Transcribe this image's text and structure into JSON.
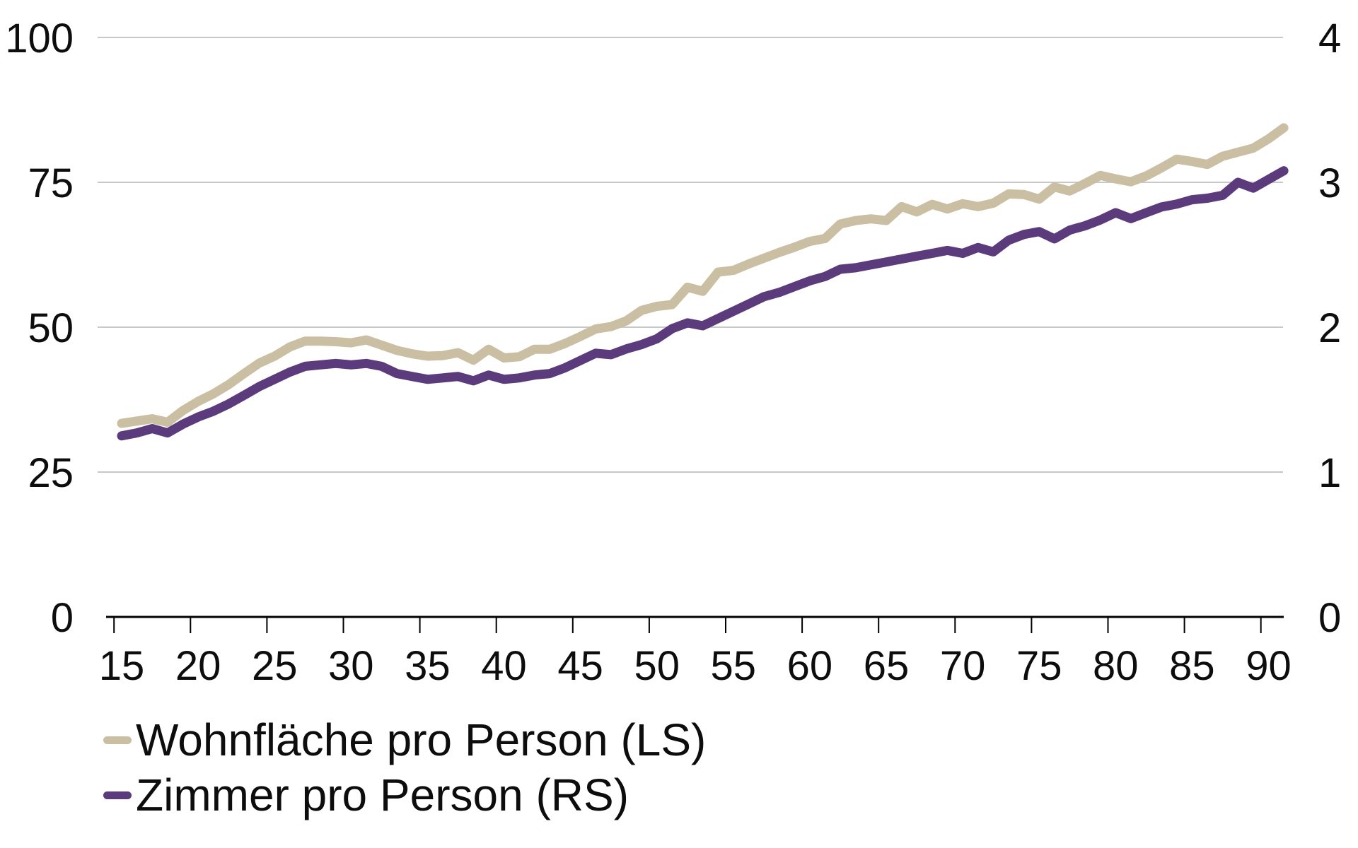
{
  "chart_data": {
    "type": "line",
    "grid": "horizontal",
    "legend_position": "bottom-left",
    "x": [
      15,
      16,
      17,
      18,
      19,
      20,
      21,
      22,
      23,
      24,
      25,
      26,
      27,
      28,
      29,
      30,
      31,
      32,
      33,
      34,
      35,
      36,
      37,
      38,
      39,
      40,
      41,
      42,
      43,
      44,
      45,
      46,
      47,
      48,
      49,
      50,
      51,
      52,
      53,
      54,
      55,
      56,
      57,
      58,
      59,
      60,
      61,
      62,
      63,
      64,
      65,
      66,
      67,
      68,
      69,
      70,
      71,
      72,
      73,
      74,
      75,
      76,
      77,
      78,
      79,
      80,
      81,
      82,
      83,
      84,
      85,
      86,
      87,
      88,
      89,
      90,
      91
    ],
    "x_axis": {
      "ticks": [
        15,
        20,
        25,
        30,
        35,
        40,
        45,
        50,
        55,
        60,
        65,
        70,
        75,
        80,
        85,
        90
      ]
    },
    "left_axis": {
      "ticks": [
        0,
        25,
        50,
        75,
        100
      ],
      "range": [
        0,
        100
      ]
    },
    "right_axis": {
      "ticks": [
        0,
        1,
        2,
        3,
        4
      ],
      "range": [
        0,
        4
      ]
    },
    "series": [
      {
        "name": "Wohnfläche pro Person (LS)",
        "axis": "left",
        "color": "#cabfa2",
        "values": [
          33.4,
          33.8,
          34.2,
          33.6,
          35.6,
          37.2,
          38.5,
          40.1,
          42.0,
          43.8,
          45.0,
          46.6,
          47.6,
          47.6,
          47.5,
          47.3,
          47.8,
          46.9,
          46.0,
          45.4,
          45.0,
          45.1,
          45.6,
          44.3,
          46.2,
          44.7,
          44.9,
          46.2,
          46.2,
          47.2,
          48.4,
          49.7,
          50.1,
          51.1,
          52.9,
          53.6,
          53.9,
          56.9,
          56.2,
          59.5,
          59.8,
          60.9,
          61.9,
          62.9,
          63.8,
          64.8,
          65.3,
          67.8,
          68.4,
          68.7,
          68.4,
          70.8,
          69.9,
          71.2,
          70.4,
          71.3,
          70.8,
          71.4,
          73.0,
          72.9,
          72.1,
          74.2,
          73.5,
          74.8,
          76.2,
          75.6,
          75.1,
          76.1,
          77.5,
          79.0,
          78.6,
          78.1,
          79.5,
          80.2,
          80.9,
          82.5,
          84.4
        ]
      },
      {
        "name": "Zimmer pro Person (RS)",
        "axis": "right",
        "color": "#5b3b7b",
        "values": [
          1.25,
          1.27,
          1.3,
          1.27,
          1.33,
          1.38,
          1.42,
          1.47,
          1.53,
          1.59,
          1.64,
          1.69,
          1.73,
          1.74,
          1.75,
          1.74,
          1.75,
          1.73,
          1.68,
          1.66,
          1.64,
          1.65,
          1.66,
          1.63,
          1.67,
          1.64,
          1.65,
          1.67,
          1.68,
          1.72,
          1.77,
          1.82,
          1.81,
          1.85,
          1.88,
          1.92,
          1.99,
          2.03,
          2.01,
          2.06,
          2.11,
          2.16,
          2.21,
          2.24,
          2.28,
          2.32,
          2.35,
          2.4,
          2.41,
          2.43,
          2.45,
          2.47,
          2.49,
          2.51,
          2.53,
          2.51,
          2.55,
          2.52,
          2.6,
          2.64,
          2.66,
          2.61,
          2.67,
          2.7,
          2.74,
          2.79,
          2.75,
          2.79,
          2.83,
          2.85,
          2.88,
          2.89,
          2.91,
          3.0,
          2.96,
          3.02,
          3.08
        ]
      }
    ]
  },
  "legend": {
    "items": [
      {
        "label": "Wohnfläche pro Person (LS)"
      },
      {
        "label": "Zimmer pro Person (RS)"
      }
    ]
  },
  "styles": {
    "gridline_color": "#c8c8c8",
    "axis_color": "#000000",
    "text_color": "#0d0d0d",
    "background": "#ffffff"
  }
}
